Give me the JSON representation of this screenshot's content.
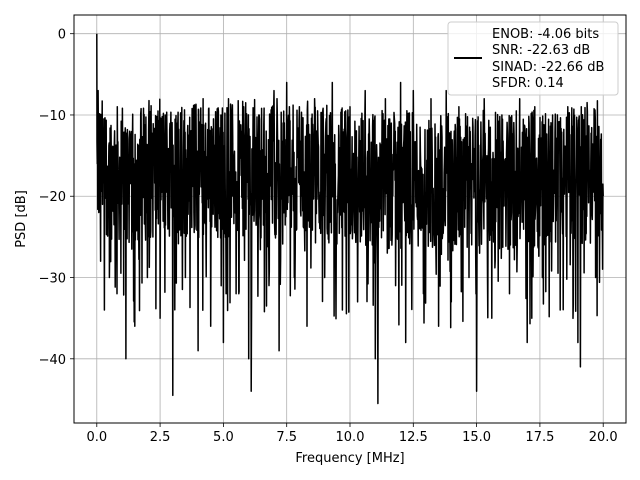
{
  "chart_data": {
    "type": "line",
    "xlabel": "Frequency [MHz]",
    "ylabel": "PSD [dB]",
    "xlim": [
      -0.9,
      20.9
    ],
    "ylim": [
      -47.9,
      2.3
    ],
    "xticks": [
      0.0,
      2.5,
      5.0,
      7.5,
      10.0,
      12.5,
      15.0,
      17.5,
      20.0
    ],
    "xtick_labels": [
      "0.0",
      "2.5",
      "5.0",
      "7.5",
      "10.0",
      "12.5",
      "15.0",
      "17.5",
      "20.0"
    ],
    "yticks": [
      0,
      -10,
      -20,
      -30,
      -40
    ],
    "ytick_labels": [
      "0",
      "−10",
      "−20",
      "−30",
      "−40"
    ],
    "grid": true,
    "legend": {
      "placement": "top-right",
      "lines": [
        "ENOB: -4.06 bits",
        "SNR: -22.63 dB",
        "SINAD: -22.66 dB",
        "SFDR: 0.14"
      ]
    },
    "series": [
      {
        "color": "#000000",
        "description": "dense noisy PSD trace, mostly between -30 and -8 dB",
        "x": [
          0.0,
          0.02,
          0.05,
          0.08,
          0.1,
          0.15,
          0.2,
          0.3,
          0.35,
          0.5,
          0.62,
          0.8,
          1.0,
          1.15,
          1.3,
          1.5,
          1.7,
          2.0,
          2.3,
          2.5,
          2.7,
          3.0,
          3.2,
          3.5,
          3.8,
          4.0,
          4.2,
          4.5,
          4.9,
          5.0,
          5.2,
          5.5,
          5.8,
          6.0,
          6.1,
          6.4,
          6.8,
          7.0,
          7.2,
          7.5,
          7.8,
          8.0,
          8.3,
          8.6,
          9.0,
          9.3,
          9.7,
          10.0,
          10.3,
          10.6,
          11.0,
          11.1,
          11.4,
          11.8,
          12.0,
          12.2,
          12.5,
          12.9,
          13.2,
          13.5,
          13.8,
          14.0,
          14.3,
          14.7,
          15.0,
          15.3,
          15.6,
          16.0,
          16.3,
          16.7,
          17.0,
          17.3,
          17.6,
          18.0,
          18.3,
          18.6,
          19.0,
          19.1,
          19.4,
          19.7,
          19.9,
          20.0
        ],
        "y": [
          0.0,
          -16.0,
          -7.0,
          -22.0,
          -10.0,
          -28.0,
          -14.0,
          -34.0,
          -12.0,
          -30.0,
          -14.0,
          -32.0,
          -15.0,
          -40.0,
          -12.0,
          -36.0,
          -13.0,
          -30.0,
          -14.0,
          -35.0,
          -10.0,
          -44.5,
          -11.0,
          -30.0,
          -10.0,
          -39.0,
          -8.0,
          -36.0,
          -10.0,
          -38.0,
          -8.0,
          -32.0,
          -9.0,
          -40.0,
          -44.0,
          -10.0,
          -31.0,
          -7.0,
          -39.0,
          -6.0,
          -30.0,
          -9.0,
          -36.0,
          -8.0,
          -30.0,
          -6.0,
          -34.0,
          -9.0,
          -33.0,
          -7.0,
          -40.0,
          -45.5,
          -8.0,
          -31.0,
          -6.0,
          -38.0,
          -7.0,
          -32.0,
          -8.0,
          -36.0,
          -7.0,
          -33.0,
          -9.0,
          -30.0,
          -44.0,
          -8.0,
          -35.0,
          -10.0,
          -32.0,
          -8.0,
          -38.0,
          -9.0,
          -30.0,
          -10.0,
          -34.0,
          -9.0,
          -38.0,
          -41.0,
          -12.0,
          -30.0,
          -13.0,
          -20.0
        ]
      }
    ]
  }
}
